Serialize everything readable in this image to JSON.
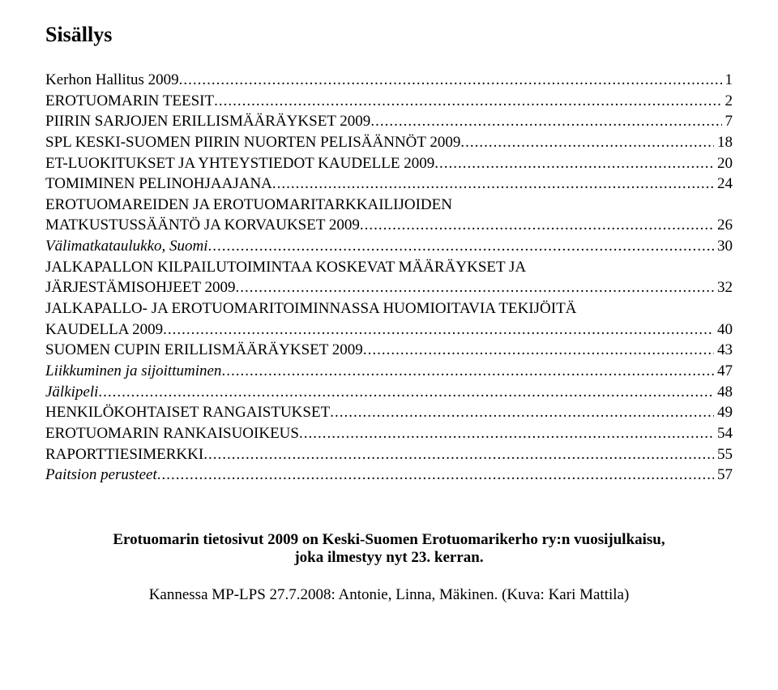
{
  "title": "Sisällys",
  "toc": [
    {
      "label": "Kerhon Hallitus 2009",
      "page": "1",
      "italic": false,
      "wrap": false
    },
    {
      "label": "EROTUOMARIN TEESIT",
      "page": "2",
      "italic": false,
      "wrap": false
    },
    {
      "label": "PIIRIN SARJOJEN ERILLISMÄÄRÄYKSET 2009",
      "page": "7",
      "italic": false,
      "wrap": false
    },
    {
      "label": "SPL KESKI-SUOMEN PIIRIN NUORTEN PELISÄÄNNÖT 2009",
      "page": "18",
      "italic": false,
      "wrap": false
    },
    {
      "label": "ET-LUOKITUKSET JA YHTEYSTIEDOT KAUDELLE 2009",
      "page": "20",
      "italic": false,
      "wrap": false
    },
    {
      "label": "TOMIMINEN PELINOHJAAJANA",
      "page": "24",
      "italic": false,
      "wrap": false
    },
    {
      "label": "EROTUOMAREIDEN JA EROTUOMARITARKKAILIJOIDEN",
      "label2": "MATKUSTUSSÄÄNTÖ JA KORVAUKSET 2009",
      "page": "26",
      "italic": false,
      "wrap": true
    },
    {
      "label": "Välimatkataulukko, Suomi",
      "page": "30",
      "italic": true,
      "wrap": false
    },
    {
      "label": "JALKAPALLON KILPAILUTOIMINTAA KOSKEVAT MÄÄRÄYKSET JA",
      "label2": "JÄRJESTÄMISOHJEET 2009",
      "page": "32",
      "italic": false,
      "wrap": true
    },
    {
      "label": "JALKAPALLO- JA EROTUOMARITOIMINNASSA HUOMIOITAVIA TEKIJÖITÄ",
      "label2": "KAUDELLA 2009",
      "page": "40",
      "italic": false,
      "wrap": true
    },
    {
      "label": "SUOMEN CUPIN ERILLISMÄÄRÄYKSET 2009",
      "page": "43",
      "italic": false,
      "wrap": false
    },
    {
      "label": "Liikkuminen ja sijoittuminen",
      "page": "47",
      "italic": true,
      "wrap": false
    },
    {
      "label": "Jälkipeli",
      "page": "48",
      "italic": true,
      "wrap": false
    },
    {
      "label": "HENKILÖKOHTAISET RANGAISTUKSET",
      "page": "49",
      "italic": false,
      "wrap": false
    },
    {
      "label": "EROTUOMARIN RANKAISUOIKEUS",
      "page": "54",
      "italic": false,
      "wrap": false
    },
    {
      "label": "RAPORTTIESIMERKKI",
      "page": "55",
      "italic": false,
      "wrap": false
    },
    {
      "label": "Paitsion perusteet",
      "page": "57",
      "italic": true,
      "wrap": false
    }
  ],
  "footer_bold_line1": "Erotuomarin tietosivut 2009 on Keski-Suomen Erotuomarikerho ry:n vuosijulkaisu,",
  "footer_bold_line2": "joka ilmestyy nyt 23. kerran.",
  "footer_caption": "Kannessa MP-LPS 27.7.2008: Antonie, Linna, Mäkinen. (Kuva: Kari Mattila)"
}
